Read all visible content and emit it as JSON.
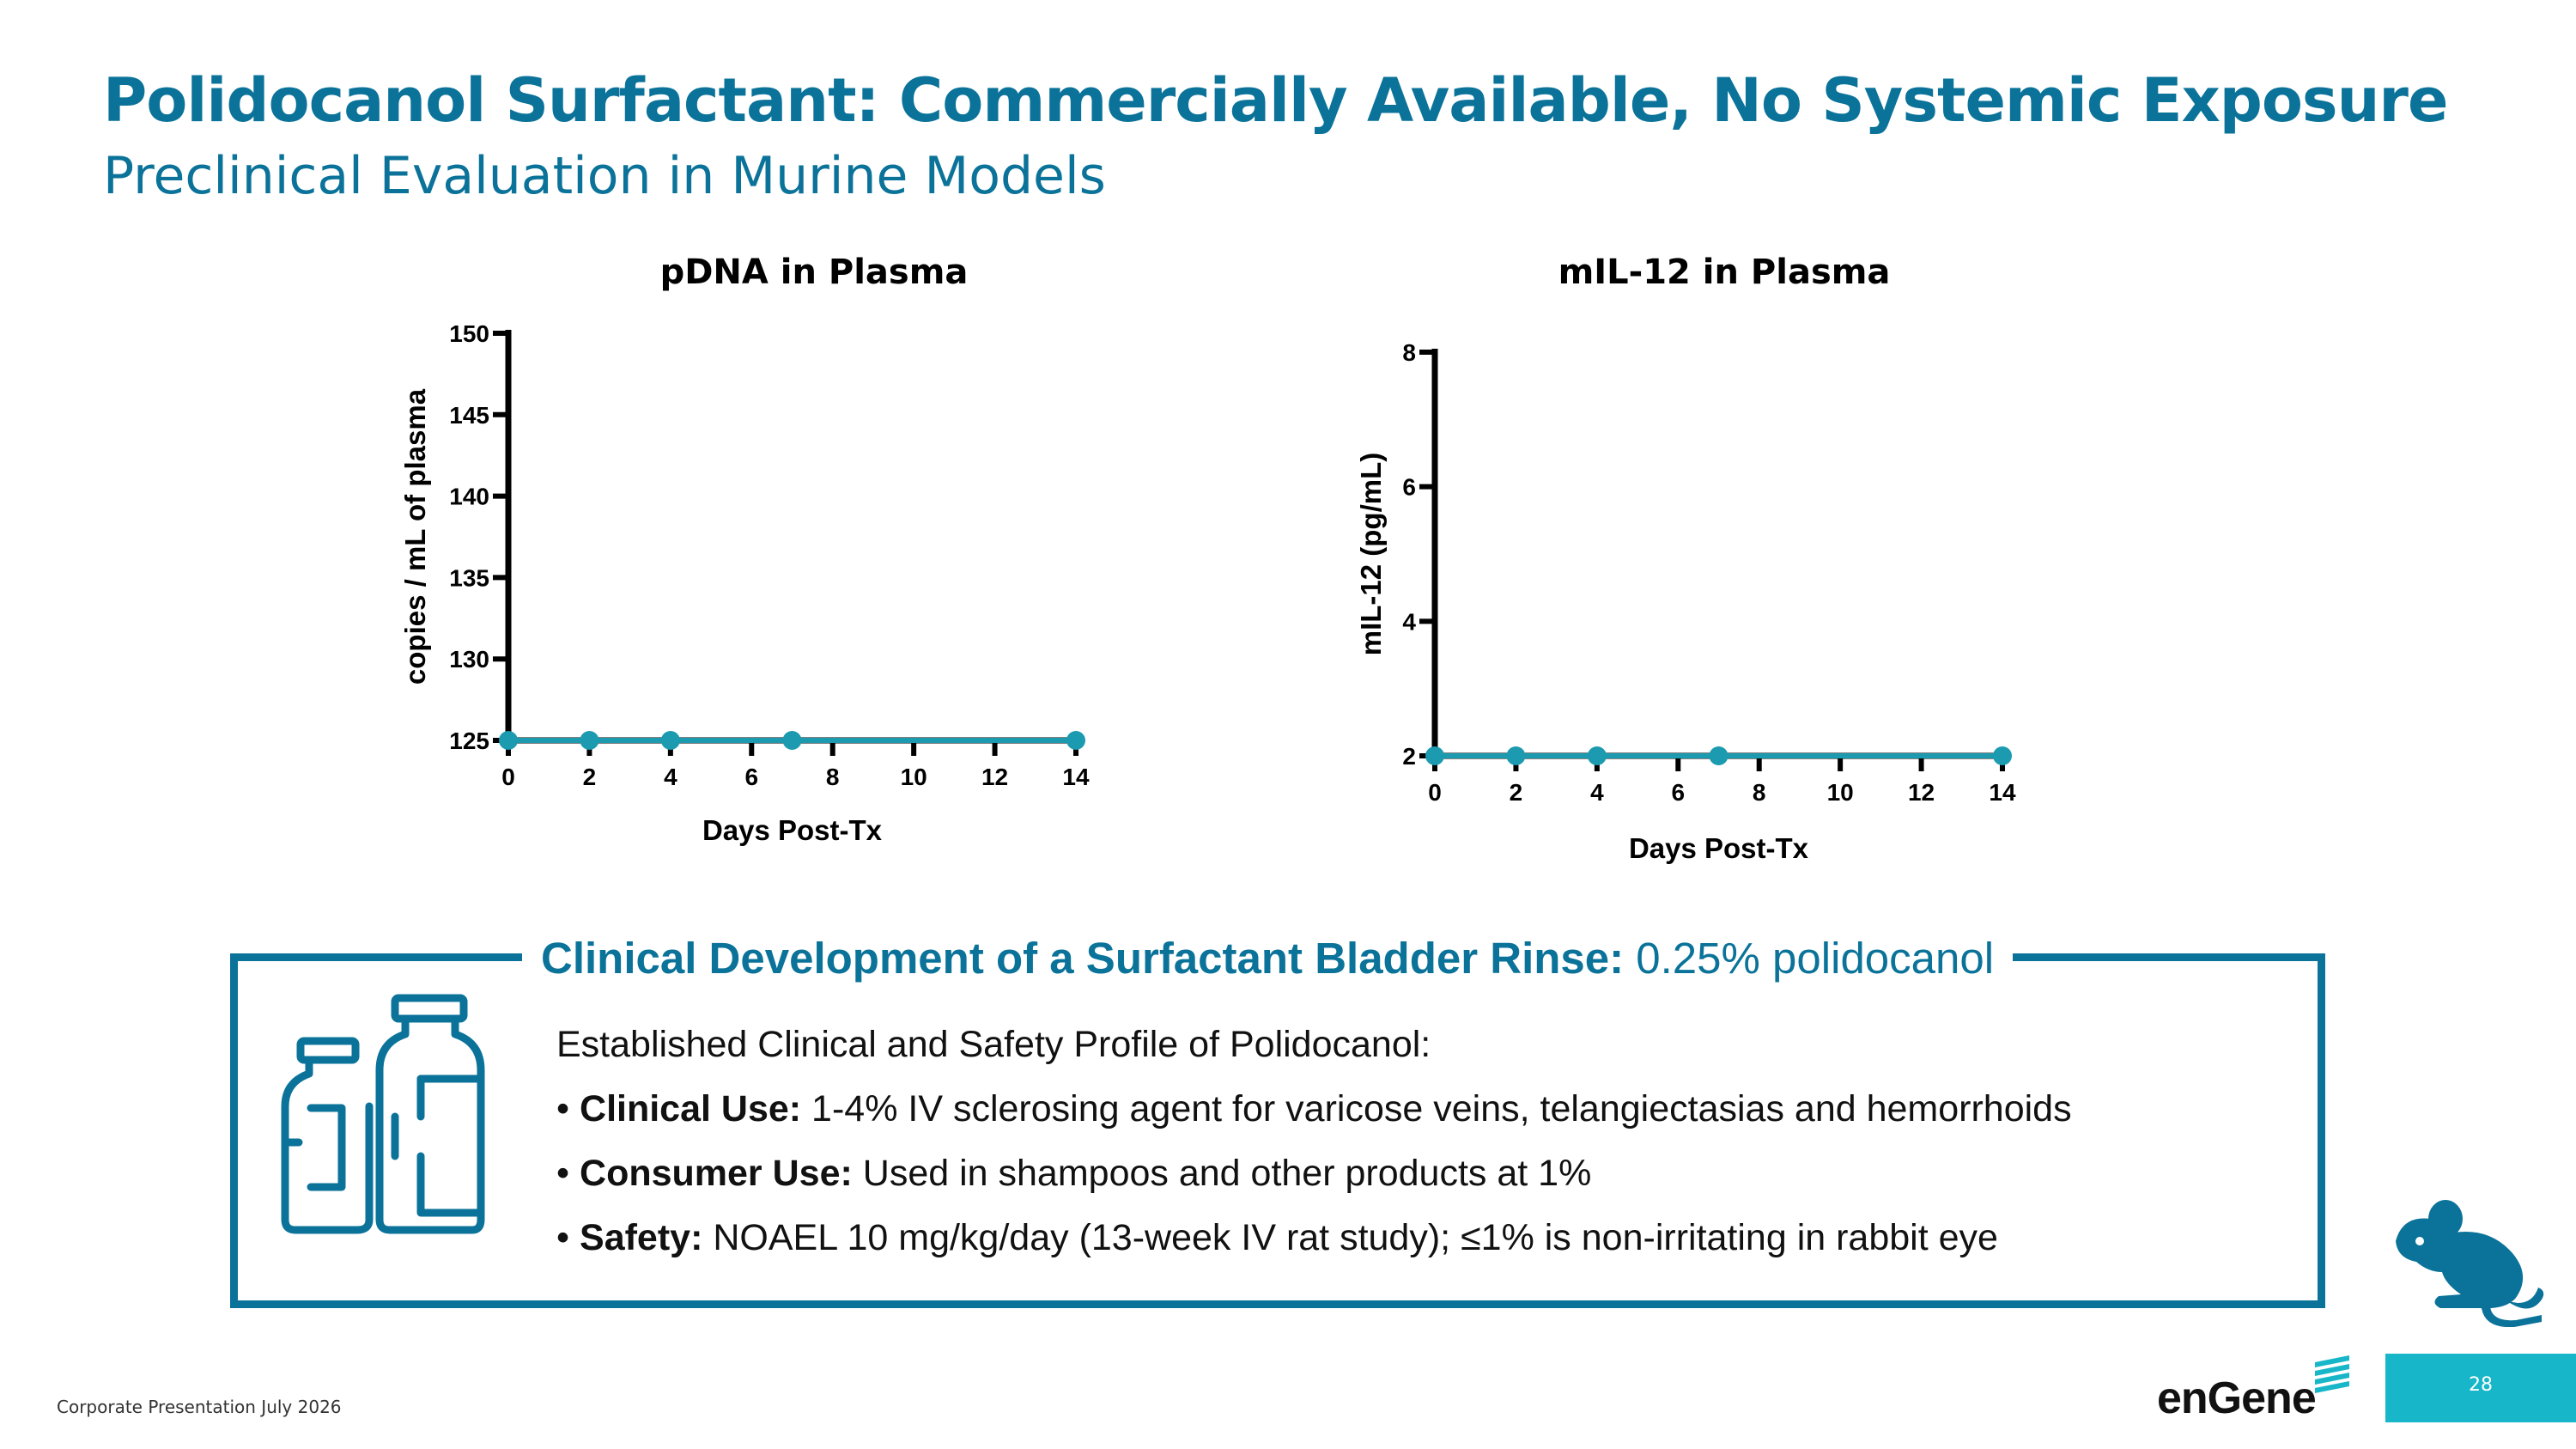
{
  "title": "Polidocanol Surfactant: Commercially Available, No Systemic Exposure",
  "subtitle": "Preclinical Evaluation in Murine Models",
  "chart_data": [
    {
      "type": "line",
      "title": "pDNA in Plasma",
      "xlabel": "Days Post-Tx",
      "ylabel": "copies / mL of plasma",
      "xlim": [
        0,
        14
      ],
      "ylim": [
        125,
        150
      ],
      "xticks": [
        0,
        2,
        4,
        6,
        8,
        10,
        12,
        14
      ],
      "yticks": [
        125,
        130,
        135,
        140,
        145,
        150
      ],
      "x": [
        0,
        2,
        4,
        7,
        14
      ],
      "series": [
        {
          "values": [
            125,
            125,
            125,
            125,
            125
          ]
        }
      ],
      "grid": false,
      "color": "#1b9ab0"
    },
    {
      "type": "line",
      "title": "mIL-12 in Plasma",
      "xlabel": "Days Post-Tx",
      "ylabel": "mIL-12 (pg/mL)",
      "xlim": [
        0,
        14
      ],
      "ylim": [
        2,
        8
      ],
      "xticks": [
        0,
        2,
        4,
        6,
        8,
        10,
        12,
        14
      ],
      "yticks": [
        2,
        4,
        6,
        8
      ],
      "x": [
        0,
        2,
        4,
        7,
        14
      ],
      "series": [
        {
          "values": [
            2,
            2,
            2,
            2,
            2
          ]
        }
      ],
      "grid": false,
      "color": "#1b9ab0"
    }
  ],
  "callout": {
    "heading_bold": "Clinical Development of a Surfactant Bladder Rinse:",
    "heading_rest": " 0.25% polidocanol",
    "intro": "Established Clinical and Safety Profile of Polidocanol:",
    "bullets": [
      {
        "label": "Clinical Use:",
        "text": " 1-4% IV sclerosing agent for varicose veins, telangiectasias and hemorrhoids"
      },
      {
        "label": "Consumer Use:",
        "text": " Used in shampoos and other products at 1%"
      },
      {
        "label": "Safety:",
        "text": " NOAEL 10 mg/kg/day (13-week IV rat study); ≤1% is non-irritating in rabbit eye"
      }
    ],
    "bullet_char": "•",
    "icon": "vials-icon"
  },
  "mouse_icon": "mouse-icon",
  "footer": "Corporate Presentation July 2026",
  "logo": "enGene",
  "page_number": "28",
  "colors": {
    "brand": "#0b7399",
    "series": "#1b9ab0",
    "page_box": "#17b6c8"
  }
}
